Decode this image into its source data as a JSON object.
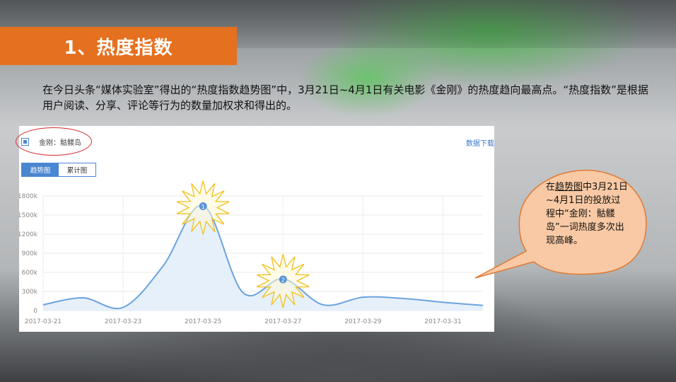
{
  "slide": {
    "title": "1、热度指数",
    "intro": "在今日头条“媒体实验室”得出的“热度指数趋势图”中，3月21日~4月1日有关电影《金刚》的热度趋向最高点。“热度指数”是根据用户阅读、分享、评论等行为的数量加权求和得出的。"
  },
  "panel": {
    "legend_label": "金刚：骷髅岛",
    "download_label": "数据下载",
    "tabs": [
      {
        "label": "趋势图",
        "active": true
      },
      {
        "label": "累计图",
        "active": false
      }
    ]
  },
  "callout": {
    "prefix": "在",
    "underlined": "趋势图",
    "rest": "中3月21日~4月1日的投放过程中“金刚：骷髅岛”一词热度多次出现高峰。"
  },
  "colors": {
    "title_bar": "#e5701f",
    "line": "#6ba3dd",
    "area": "#e6f0fa",
    "marker": "#5b95d6",
    "burst_fill": "#fff9d6",
    "burst_stroke": "#f0c020",
    "callout_fill": "#f8c9a4",
    "callout_stroke": "#e07a34",
    "circle_note": "#d42a2a"
  },
  "chart_data": {
    "type": "area",
    "x": [
      "2017-03-21",
      "2017-03-22",
      "2017-03-23",
      "2017-03-24",
      "2017-03-25",
      "2017-03-26",
      "2017-03-27",
      "2017-03-28",
      "2017-03-29",
      "2017-03-30",
      "2017-03-31",
      "2017-04-01"
    ],
    "xticks": [
      "2017-03-21",
      "2017-03-23",
      "2017-03-25",
      "2017-03-27",
      "2017-03-29",
      "2017-03-31"
    ],
    "yticks": [
      "0",
      "300k",
      "600k",
      "900k",
      "1200k",
      "1500k",
      "1800k"
    ],
    "ylim": [
      0,
      1800000
    ],
    "series": [
      {
        "name": "金刚：骷髅岛",
        "values": [
          90000,
          200000,
          50000,
          700000,
          1650000,
          280000,
          500000,
          90000,
          210000,
          190000,
          130000,
          80000
        ]
      }
    ],
    "annotations": [
      {
        "label": "1",
        "x": "2017-03-25"
      },
      {
        "label": "2",
        "x": "2017-03-27"
      }
    ],
    "grid": true
  }
}
